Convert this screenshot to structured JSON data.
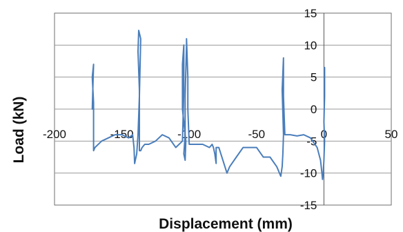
{
  "chart_data": {
    "type": "line",
    "title": "",
    "xlabel": "Displacement (mm)",
    "ylabel": "Load (kN)",
    "xlim": [
      -200,
      50
    ],
    "ylim": [
      -15,
      15
    ],
    "x_ticks": [
      -200,
      -150,
      -100,
      -50,
      0,
      50
    ],
    "y_ticks": [
      15,
      10,
      5,
      0,
      -5,
      -10,
      -15
    ],
    "x_tick_labels": [
      "-200",
      "-150",
      "-100",
      "-50",
      "0",
      "50"
    ],
    "y_tick_labels": [
      "15",
      "10",
      "5",
      "0",
      "-5",
      "-10",
      "-15"
    ],
    "grid": "horizontal",
    "legend": "none",
    "line_color": "#4a7ebb",
    "series": [
      {
        "x": [
          0.5,
          0.5,
          0.0,
          0.5,
          0.0,
          -0.5,
          -1.0,
          -1.5,
          -2.5,
          -5,
          -10,
          -15,
          -20,
          -25,
          -29,
          -30,
          -30,
          -31,
          -30,
          -30.5,
          -31,
          -32,
          -35,
          -40,
          -45,
          -50,
          -55,
          -60,
          -65,
          -70,
          -72,
          -75,
          -78,
          -80,
          -80,
          -80,
          -81,
          -82,
          -83,
          -85,
          -90,
          -95,
          -100,
          -101,
          -101,
          -102,
          -102,
          -103,
          -103,
          -104,
          -103,
          -102.5,
          -105,
          -105,
          -104,
          -104,
          -105,
          -110,
          -115,
          -120,
          -125,
          -130,
          -133,
          -135,
          -136,
          -137,
          -137,
          -138,
          -137.5,
          -136,
          -137,
          -138,
          -139,
          -140,
          -140.5,
          -141,
          -142,
          -145,
          -150,
          -155,
          -160,
          -165,
          -170,
          -171,
          -171,
          -171,
          -172,
          -171,
          -172
        ],
        "y": [
          6.5,
          2,
          -2,
          -5,
          -8,
          -10,
          -11,
          -10,
          -8,
          -6,
          -4.5,
          -4,
          -4.2,
          -4,
          -4,
          2,
          8,
          3,
          -4,
          -7,
          -9,
          -10.5,
          -9,
          -7.5,
          -7.5,
          -6,
          -6,
          -6,
          -7.5,
          -9,
          -10,
          -8,
          -6,
          -6,
          -7.5,
          -8.5,
          -7,
          -6,
          -5.5,
          -6,
          -5.5,
          -5.5,
          -5.5,
          0,
          5,
          11,
          10,
          2,
          -4,
          -7,
          -8,
          -5,
          0,
          7,
          10,
          3,
          -5,
          -6,
          -4.5,
          -4,
          -5,
          -5.5,
          -5.5,
          -6,
          -6.5,
          -6.5,
          3,
          9,
          12.3,
          11,
          2,
          -4,
          -7,
          -8,
          -8.5,
          -6,
          -4,
          -4.5,
          -4,
          -4,
          -4.5,
          -5,
          -6,
          -6.5,
          -3,
          1,
          5,
          7,
          0
        ]
      }
    ]
  }
}
